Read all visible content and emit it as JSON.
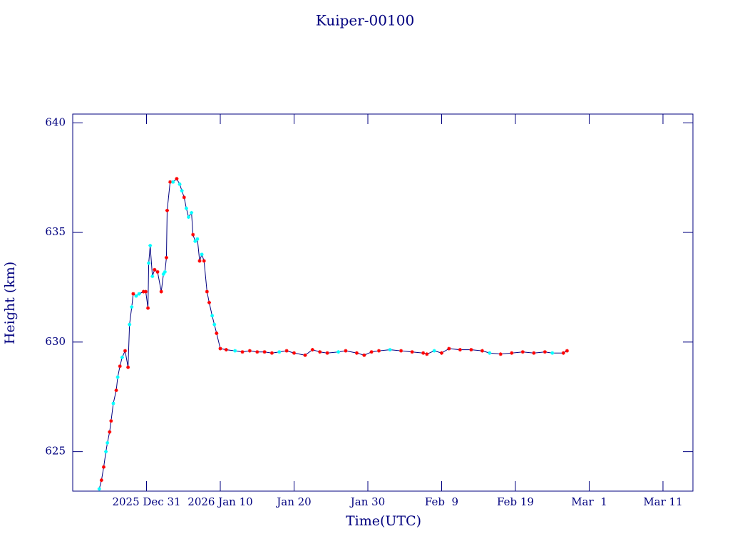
{
  "chart_data": {
    "type": "line",
    "title": "Kuiper-00100",
    "x_label": "Time(UTC)",
    "y_label": "Height (km)",
    "xlim": [
      -10,
      74.06
    ],
    "ylim": [
      623.2,
      640.4
    ],
    "xticks": [
      {
        "value": 0,
        "label": "2025 Dec 31"
      },
      {
        "value": 10,
        "label": "2026 Jan 10"
      },
      {
        "value": 20,
        "label": "Jan 20"
      },
      {
        "value": 30,
        "label": "Jan 30"
      },
      {
        "value": 40,
        "label": "Feb  9"
      },
      {
        "value": 50,
        "label": "Feb 19"
      },
      {
        "value": 60,
        "label": "Mar  1"
      },
      {
        "value": 70,
        "label": "Mar 11"
      }
    ],
    "yticks": [
      625,
      630,
      635,
      640
    ],
    "series": [
      {
        "color": "#00007f",
        "x": [
          -6.4,
          -6.1,
          -5.8,
          -5.5,
          -5.3,
          -5.0,
          -4.8,
          -4.5,
          -4.1,
          -3.9,
          -3.6,
          -3.3,
          -2.9,
          -2.5,
          -2.3,
          -2.0,
          -1.8,
          -1.4,
          -1.0,
          -0.4,
          -0.1,
          0.2,
          0.3,
          0.5,
          0.8,
          1.1,
          1.5,
          2.0,
          2.3,
          2.5,
          2.7,
          2.8,
          3.2,
          3.6,
          4.1,
          4.5,
          4.8,
          5.1,
          5.4,
          5.7,
          6.1,
          6.3,
          6.6,
          6.9,
          7.2,
          7.5,
          7.8,
          8.2,
          8.5,
          8.9,
          9.2,
          9.5,
          10.0,
          10.8,
          12,
          13,
          14,
          15,
          16,
          17,
          18,
          19,
          20,
          21.5,
          22.5,
          23.5,
          24.5,
          26,
          27,
          28.5,
          29.5,
          30.5,
          31.5,
          33,
          34.5,
          36,
          37.5,
          38,
          39,
          40,
          41,
          42.5,
          44,
          45.5,
          46.5,
          48,
          49.5,
          51,
          52.5,
          54,
          55,
          56.5,
          57.0
        ],
        "values": [
          623.3,
          623.7,
          624.3,
          625.0,
          625.4,
          625.9,
          626.4,
          627.2,
          627.8,
          628.4,
          628.9,
          629.3,
          629.6,
          628.85,
          630.8,
          631.6,
          632.2,
          632.1,
          632.2,
          632.3,
          632.3,
          631.55,
          633.6,
          634.4,
          633.0,
          633.3,
          633.2,
          632.3,
          633.1,
          633.2,
          633.85,
          636.0,
          637.3,
          637.3,
          637.45,
          637.2,
          636.9,
          636.6,
          636.1,
          635.7,
          635.9,
          634.9,
          634.6,
          634.7,
          633.7,
          634.0,
          633.7,
          632.3,
          631.8,
          631.2,
          630.8,
          630.4,
          629.7,
          629.65,
          629.6,
          629.55,
          629.6,
          629.55,
          629.55,
          629.5,
          629.55,
          629.6,
          629.5,
          629.4,
          629.65,
          629.55,
          629.5,
          629.55,
          629.6,
          629.5,
          629.4,
          629.55,
          629.6,
          629.65,
          629.6,
          629.55,
          629.5,
          629.45,
          629.6,
          629.5,
          629.7,
          629.65,
          629.65,
          629.6,
          629.5,
          629.45,
          629.5,
          629.55,
          629.5,
          629.55,
          629.5,
          629.5,
          629.6
        ],
        "marker_colors": [
          "cyan",
          "red",
          "red",
          "cyan",
          "cyan",
          "red",
          "red",
          "cyan",
          "red",
          "cyan",
          "red",
          "cyan",
          "red",
          "red",
          "cyan",
          "cyan",
          "red",
          "cyan",
          "cyan",
          "red",
          "red",
          "red",
          "cyan",
          "cyan",
          "cyan",
          "red",
          "red",
          "red",
          "cyan",
          "cyan",
          "red",
          "red",
          "red",
          "cyan",
          "red",
          "cyan",
          "cyan",
          "red",
          "cyan",
          "cyan",
          "cyan",
          "red",
          "cyan",
          "cyan",
          "red",
          "cyan",
          "red",
          "red",
          "red",
          "cyan",
          "cyan",
          "red",
          "red",
          "red",
          "cyan",
          "red",
          "red",
          "red",
          "red",
          "red",
          "cyan",
          "red",
          "red",
          "red",
          "red",
          "red",
          "red",
          "cyan",
          "red",
          "red",
          "red",
          "red",
          "red",
          "cyan",
          "red",
          "red",
          "red",
          "red",
          "cyan",
          "red",
          "red",
          "red",
          "red",
          "red",
          "cyan",
          "red",
          "red",
          "red",
          "red",
          "red",
          "cyan",
          "red",
          "red"
        ]
      }
    ]
  }
}
